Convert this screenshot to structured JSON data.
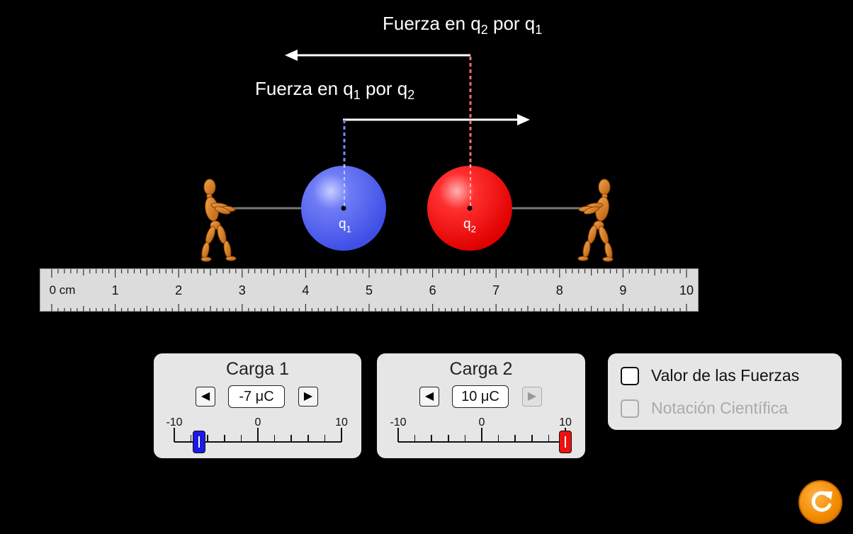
{
  "forces": {
    "force_on_q2": {
      "text": "Fuerza en q",
      "sub1": "2",
      "mid": " por q",
      "sub2": "1"
    },
    "force_on_q1": {
      "text": "Fuerza en q",
      "sub1": "1",
      "mid": " por q",
      "sub2": "2"
    }
  },
  "charges": {
    "q1": {
      "label": "q",
      "sub": "1",
      "color": "#4c5cf0"
    },
    "q2": {
      "label": "q",
      "sub": "2",
      "color": "#ee1111"
    }
  },
  "ruler": {
    "labels": [
      "0 cm",
      "1",
      "2",
      "3",
      "4",
      "5",
      "6",
      "7",
      "8",
      "9",
      "10"
    ]
  },
  "panel_charge1": {
    "title": "Carga 1",
    "value": "-7 μC",
    "min_label": "-10",
    "mid_label": "0",
    "max_label": "10",
    "level": -7,
    "thumb_color": "#1a1ae6"
  },
  "panel_charge2": {
    "title": "Carga 2",
    "value": "10 μC",
    "min_label": "-10",
    "mid_label": "0",
    "max_label": "10",
    "level": 10,
    "thumb_color": "#ee1111"
  },
  "options": {
    "show_values": {
      "label": "Valor de las Fuerzas",
      "checked": false
    },
    "scientific": {
      "label": "Notación Científica",
      "checked": false,
      "enabled": false
    }
  },
  "colors": {
    "accent_reset": "#f28a00",
    "dashed_q1": "#7b86ff",
    "dashed_q2": "#ff6b6b"
  }
}
